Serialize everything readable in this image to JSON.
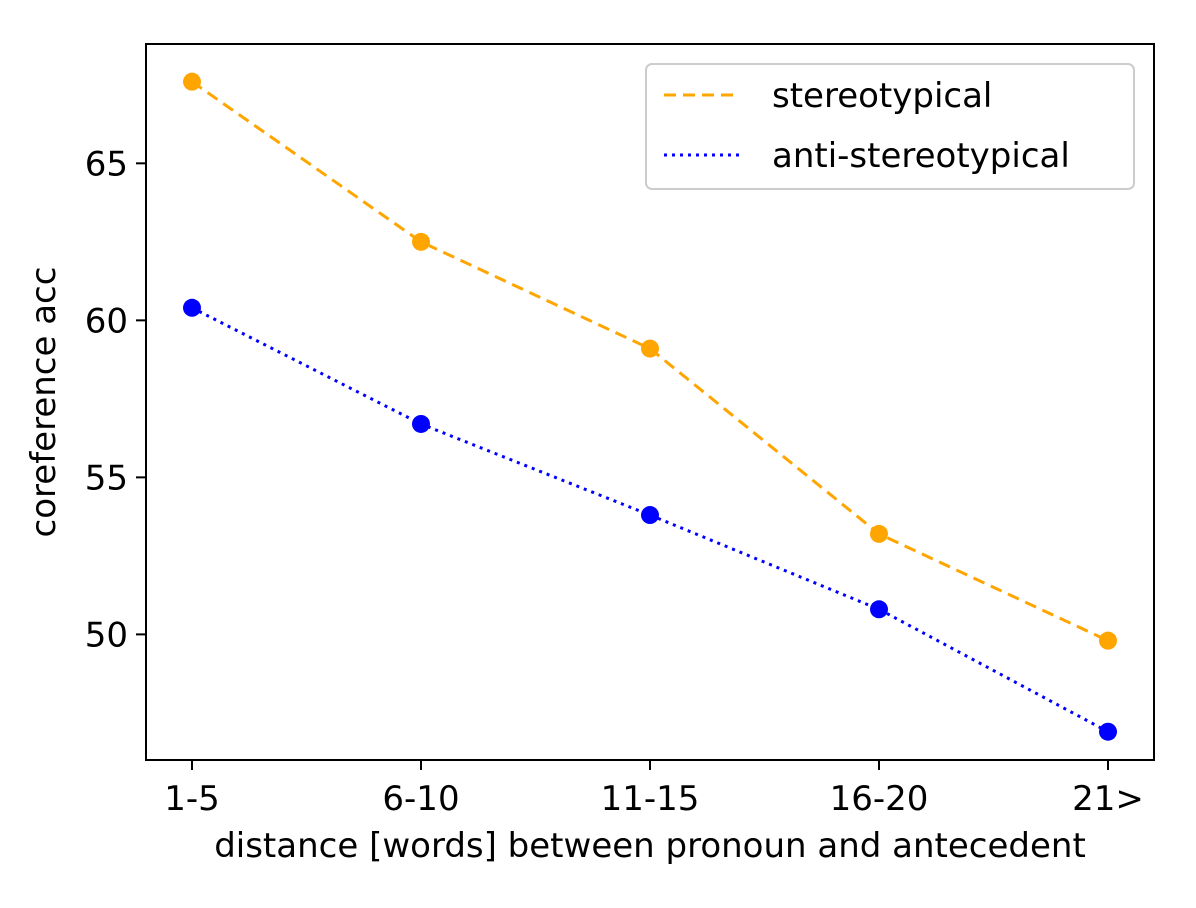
{
  "chart_data": {
    "type": "line",
    "title": "",
    "xlabel": "distance [words] between pronoun and antecedent",
    "ylabel": "coreference acc",
    "categories": [
      "1-5",
      "6-10",
      "11-15",
      "16-20",
      "21>"
    ],
    "ylim": [
      46.0,
      68.8
    ],
    "yticks": [
      50,
      55,
      60,
      65
    ],
    "grid": false,
    "legend_position": "top-right",
    "series": [
      {
        "name": "stereotypical",
        "values": [
          67.6,
          62.5,
          59.1,
          53.2,
          49.8
        ],
        "color": "#FFA500",
        "line_style": "dashed",
        "marker": "circle"
      },
      {
        "name": "anti-stereotypical",
        "values": [
          60.4,
          56.7,
          53.8,
          50.8,
          46.9
        ],
        "color": "#0000FF",
        "line_style": "dotted",
        "marker": "circle"
      }
    ]
  }
}
